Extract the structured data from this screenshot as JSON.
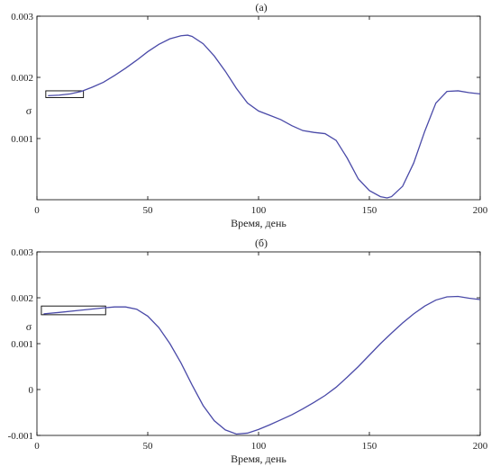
{
  "chart_data": [
    {
      "type": "line",
      "title": "(а)",
      "xlabel": "Время, день",
      "ylabel": "σ",
      "xlim": [
        0,
        200
      ],
      "ylim": [
        0,
        0.003
      ],
      "xticks": [
        0,
        50,
        100,
        150,
        200
      ],
      "xtick_labels": [
        "0",
        "50",
        "100",
        "150",
        "200"
      ],
      "yticks": [
        0.001,
        0.002,
        0.003
      ],
      "ytick_labels": [
        "0.001",
        "0.002",
        "0.003"
      ],
      "grid": false,
      "color": "#4a4aa8",
      "x": [
        5,
        10,
        15,
        20,
        25,
        30,
        35,
        40,
        45,
        50,
        55,
        60,
        65,
        68,
        70,
        75,
        80,
        85,
        90,
        95,
        100,
        105,
        110,
        115,
        120,
        125,
        130,
        135,
        140,
        145,
        150,
        155,
        158,
        160,
        165,
        170,
        175,
        180,
        185,
        190,
        195,
        200
      ],
      "y": [
        0.0017,
        0.00171,
        0.00173,
        0.00177,
        0.00184,
        0.00192,
        0.00203,
        0.00215,
        0.00228,
        0.00242,
        0.00254,
        0.00263,
        0.00268,
        0.00269,
        0.00267,
        0.00255,
        0.00235,
        0.0021,
        0.00182,
        0.00158,
        0.00145,
        0.00138,
        0.00131,
        0.00121,
        0.00113,
        0.0011,
        0.00108,
        0.00097,
        0.00068,
        0.00034,
        0.00015,
        5e-05,
        3e-05,
        5e-05,
        0.00022,
        0.0006,
        0.00112,
        0.00158,
        0.00177,
        0.00178,
        0.00175,
        0.00173
      ],
      "inset_rectangle": {
        "x": [
          4,
          21
        ],
        "y": [
          0.00167,
          0.00178
        ]
      }
    },
    {
      "type": "line",
      "title": "(б)",
      "xlabel": "Время, день",
      "ylabel": "σ",
      "xlim": [
        0,
        200
      ],
      "ylim": [
        -0.001,
        0.003
      ],
      "xticks": [
        0,
        50,
        100,
        150,
        200
      ],
      "xtick_labels": [
        "0",
        "50",
        "100",
        "150",
        "200"
      ],
      "yticks": [
        -0.001,
        0,
        0.001,
        0.002,
        0.003
      ],
      "ytick_labels": [
        "-0.001",
        "0",
        "0.001",
        "0.002",
        "0.003"
      ],
      "grid": false,
      "color": "#4a4aa8",
      "x": [
        3,
        10,
        20,
        30,
        35,
        40,
        45,
        50,
        55,
        60,
        65,
        70,
        75,
        80,
        85,
        90,
        95,
        100,
        105,
        110,
        115,
        120,
        125,
        130,
        135,
        140,
        145,
        150,
        155,
        160,
        165,
        170,
        175,
        180,
        185,
        190,
        195,
        200
      ],
      "y": [
        0.00165,
        0.00168,
        0.00173,
        0.00178,
        0.0018,
        0.0018,
        0.00175,
        0.0016,
        0.00135,
        0.001,
        0.00058,
        0.0001,
        -0.00035,
        -0.00068,
        -0.00088,
        -0.00097,
        -0.00095,
        -0.00087,
        -0.00077,
        -0.00066,
        -0.00055,
        -0.00042,
        -0.00028,
        -0.00013,
        5e-05,
        0.00027,
        0.0005,
        0.00075,
        0.001,
        0.00123,
        0.00145,
        0.00165,
        0.00182,
        0.00195,
        0.00202,
        0.00203,
        0.00199,
        0.00196
      ],
      "inset_rectangle": {
        "x": [
          2,
          31
        ],
        "y": [
          0.00163,
          0.00182
        ]
      }
    }
  ]
}
